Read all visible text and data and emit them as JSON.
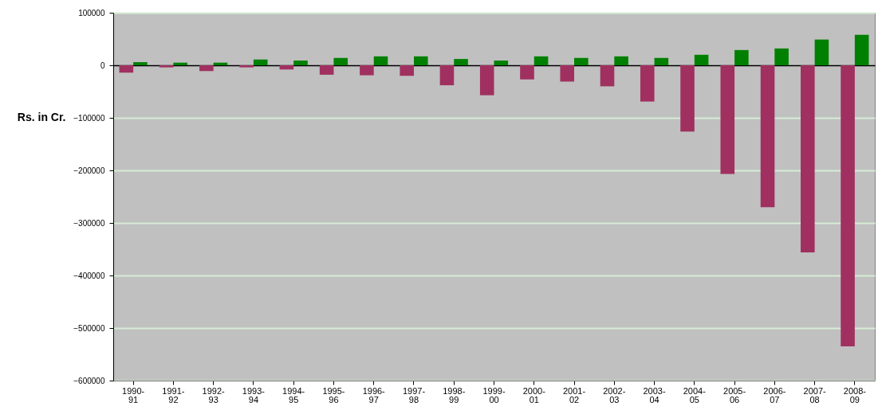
{
  "chart_data": {
    "type": "bar",
    "ylabel": "Rs. in Cr.",
    "categories": [
      "1990-91",
      "1991-92",
      "1992-93",
      "1993-94",
      "1994-95",
      "1995-96",
      "1996-97",
      "1997-98",
      "1998-99",
      "1999-00",
      "2000-01",
      "2001-02",
      "2002-03",
      "2003-04",
      "2004-05",
      "2005-06",
      "2006-07",
      "2007-08",
      "2008-09"
    ],
    "series": [
      {
        "color": "#a0305f",
        "values": [
          -14000,
          -4000,
          -11000,
          -4000,
          -8000,
          -18000,
          -19000,
          -20000,
          -38000,
          -57000,
          -27000,
          -31000,
          -40000,
          -69000,
          -126000,
          -207000,
          -270000,
          -356000,
          -535000
        ]
      },
      {
        "color": "#008000",
        "values": [
          6000,
          5000,
          5000,
          11000,
          9000,
          14000,
          17000,
          17000,
          12000,
          9000,
          17000,
          14000,
          17000,
          14000,
          20000,
          29000,
          32000,
          49000,
          58000
        ]
      }
    ],
    "ylim": [
      -600000,
      100000
    ],
    "yticks": [
      -600000,
      -500000,
      -400000,
      -300000,
      -200000,
      -100000,
      0,
      100000
    ],
    "grid": "y"
  }
}
